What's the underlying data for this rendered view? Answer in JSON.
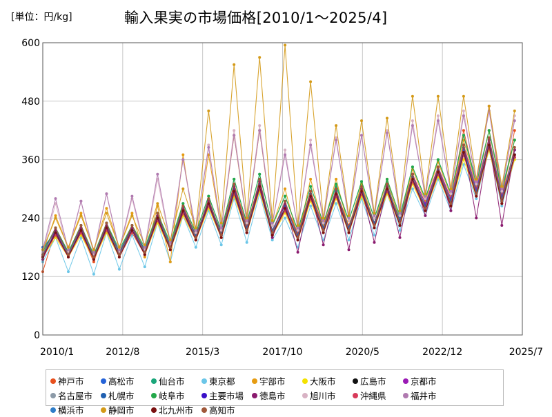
{
  "header": {
    "unit": "[単位：円/kg]",
    "title": "輸入果実の市場価格[2010/1～2025/4]"
  },
  "chart_data": {
    "type": "line",
    "title": "輸入果実の市場価格[2010/1～2025/4]",
    "unit": "[単位：円/kg]",
    "x_range": [
      "2010/1",
      "2025/7"
    ],
    "x_ticks": [
      "2010/1",
      "2012/8",
      "2015/3",
      "2017/10",
      "2020/5",
      "2022/12",
      "2025/7"
    ],
    "ylim": [
      0,
      600
    ],
    "y_ticks": [
      "0",
      "120",
      "240",
      "360",
      "480",
      "600"
    ],
    "grid": true,
    "legend_position": "bottom",
    "data_start": "2010/1",
    "data_end": "2025/4",
    "series": [
      {
        "name": "神戸市",
        "color": "#e8501e",
        "values": [
          130,
          215,
          165,
          210,
          150,
          225,
          170,
          220,
          175,
          245,
          180,
          265,
          205,
          275,
          210,
          310,
          225,
          315,
          215,
          270,
          210,
          295,
          225,
          295,
          225,
          295,
          230,
          300,
          235,
          330,
          270,
          340,
          280,
          420,
          310,
          470,
          280,
          420
        ]
      },
      {
        "name": "高松市",
        "color": "#2563d8",
        "values": [
          180,
          210,
          160,
          215,
          155,
          215,
          165,
          220,
          170,
          240,
          180,
          255,
          200,
          270,
          205,
          290,
          215,
          300,
          210,
          260,
          200,
          285,
          215,
          285,
          215,
          295,
          225,
          300,
          230,
          320,
          265,
          340,
          270,
          380,
          295,
          400,
          280,
          380
        ]
      },
      {
        "name": "仙台市",
        "color": "#1aa67a",
        "values": [
          165,
          220,
          170,
          225,
          160,
          230,
          170,
          225,
          175,
          250,
          185,
          270,
          210,
          285,
          215,
          320,
          230,
          330,
          225,
          285,
          215,
          305,
          230,
          305,
          235,
          315,
          240,
          315,
          240,
          345,
          280,
          360,
          290,
          410,
          315,
          420,
          300,
          400
        ]
      },
      {
        "name": "東京都",
        "color": "#6bc6e8",
        "values": [
          150,
          200,
          130,
          200,
          125,
          210,
          135,
          205,
          140,
          230,
          150,
          245,
          180,
          255,
          185,
          280,
          190,
          290,
          195,
          240,
          180,
          265,
          195,
          270,
          195,
          280,
          205,
          290,
          215,
          300,
          245,
          320,
          255,
          350,
          280,
          380,
          265,
          360
        ]
      },
      {
        "name": "宇部市",
        "color": "#e69c12",
        "values": [
          170,
          245,
          180,
          250,
          175,
          260,
          180,
          250,
          160,
          265,
          150,
          370,
          195,
          370,
          215,
          410,
          230,
          420,
          225,
          300,
          200,
          320,
          225,
          320,
          220,
          310,
          230,
          320,
          235,
          340,
          275,
          355,
          285,
          400,
          305,
          420,
          290,
          400
        ]
      },
      {
        "name": "大阪市",
        "color": "#f4e200",
        "values": [
          160,
          200,
          160,
          205,
          155,
          210,
          160,
          210,
          165,
          230,
          175,
          245,
          195,
          260,
          200,
          285,
          210,
          295,
          205,
          250,
          195,
          275,
          210,
          280,
          210,
          285,
          220,
          290,
          225,
          310,
          255,
          325,
          265,
          360,
          285,
          380,
          270,
          360
        ]
      },
      {
        "name": "広島市",
        "color": "#111111",
        "values": [
          165,
          205,
          165,
          210,
          160,
          215,
          165,
          215,
          170,
          235,
          180,
          250,
          200,
          265,
          205,
          290,
          215,
          300,
          210,
          255,
          200,
          280,
          215,
          285,
          215,
          290,
          225,
          295,
          230,
          315,
          260,
          330,
          270,
          370,
          290,
          385,
          275,
          365
        ]
      },
      {
        "name": "京都市",
        "color": "#9a1ab5",
        "values": [
          160,
          215,
          165,
          220,
          160,
          225,
          170,
          220,
          170,
          245,
          180,
          260,
          205,
          275,
          210,
          305,
          220,
          315,
          215,
          270,
          205,
          290,
          220,
          295,
          220,
          300,
          230,
          305,
          235,
          330,
          270,
          345,
          280,
          390,
          300,
          405,
          285,
          380
        ]
      },
      {
        "name": "名古屋市",
        "color": "#8c9aa8",
        "values": [
          165,
          210,
          165,
          215,
          160,
          220,
          165,
          215,
          170,
          240,
          180,
          255,
          200,
          270,
          205,
          295,
          215,
          305,
          210,
          260,
          200,
          285,
          215,
          290,
          215,
          295,
          225,
          300,
          230,
          320,
          260,
          335,
          270,
          375,
          290,
          390,
          275,
          370
        ]
      },
      {
        "name": "札幌市",
        "color": "#1f5fb0",
        "values": [
          175,
          215,
          170,
          220,
          165,
          225,
          170,
          220,
          175,
          245,
          185,
          260,
          205,
          275,
          210,
          300,
          220,
          310,
          215,
          265,
          205,
          290,
          220,
          295,
          220,
          300,
          230,
          305,
          235,
          325,
          265,
          340,
          275,
          385,
          295,
          400,
          280,
          380
        ]
      },
      {
        "name": "岐阜市",
        "color": "#23a84a",
        "values": [
          170,
          220,
          170,
          225,
          165,
          230,
          175,
          225,
          180,
          250,
          190,
          270,
          210,
          285,
          215,
          320,
          230,
          330,
          225,
          285,
          215,
          305,
          230,
          310,
          235,
          315,
          240,
          320,
          245,
          345,
          280,
          360,
          290,
          410,
          310,
          420,
          295,
          400
        ]
      },
      {
        "name": "主要市場",
        "color": "#3a10c8",
        "values": [
          165,
          210,
          165,
          215,
          160,
          220,
          165,
          215,
          170,
          240,
          180,
          255,
          200,
          270,
          205,
          295,
          215,
          305,
          210,
          260,
          200,
          285,
          215,
          290,
          215,
          295,
          225,
          300,
          230,
          320,
          260,
          335,
          270,
          375,
          290,
          390,
          275,
          370
        ]
      },
      {
        "name": "徳島市",
        "color": "#8a1a6e",
        "values": [
          155,
          215,
          160,
          220,
          155,
          225,
          165,
          220,
          165,
          245,
          175,
          260,
          200,
          275,
          205,
          305,
          210,
          315,
          200,
          270,
          170,
          295,
          185,
          300,
          175,
          300,
          190,
          305,
          200,
          330,
          245,
          345,
          255,
          390,
          240,
          400,
          225,
          380
        ]
      },
      {
        "name": "旭川市",
        "color": "#d8b2c4",
        "values": [
          170,
          270,
          170,
          275,
          165,
          290,
          170,
          280,
          175,
          320,
          185,
          360,
          210,
          390,
          215,
          420,
          230,
          430,
          225,
          380,
          215,
          400,
          230,
          405,
          235,
          410,
          240,
          420,
          245,
          440,
          280,
          450,
          290,
          460,
          310,
          470,
          295,
          450
        ]
      },
      {
        "name": "沖縄県",
        "color": "#d83a5a",
        "values": [
          160,
          205,
          160,
          210,
          155,
          215,
          160,
          210,
          165,
          235,
          175,
          250,
          195,
          265,
          200,
          290,
          210,
          300,
          205,
          255,
          195,
          280,
          210,
          285,
          210,
          290,
          220,
          295,
          225,
          315,
          255,
          330,
          265,
          370,
          285,
          385,
          270,
          365
        ]
      },
      {
        "name": "福井市",
        "color": "#b07ab0",
        "values": [
          175,
          280,
          175,
          275,
          170,
          290,
          175,
          285,
          180,
          330,
          190,
          360,
          215,
          385,
          220,
          410,
          235,
          420,
          230,
          370,
          220,
          390,
          235,
          400,
          240,
          410,
          245,
          415,
          250,
          430,
          285,
          440,
          295,
          450,
          315,
          460,
          300,
          440
        ]
      },
      {
        "name": "横浜市",
        "color": "#2f7dc8",
        "values": [
          165,
          210,
          165,
          215,
          160,
          220,
          165,
          215,
          170,
          240,
          180,
          255,
          200,
          270,
          205,
          295,
          215,
          305,
          210,
          260,
          200,
          285,
          215,
          290,
          215,
          295,
          225,
          300,
          230,
          320,
          260,
          335,
          270,
          375,
          290,
          390,
          275,
          370
        ]
      },
      {
        "name": "静岡市",
        "color": "#d49a18",
        "values": [
          175,
          240,
          180,
          245,
          175,
          250,
          180,
          245,
          185,
          270,
          195,
          300,
          220,
          460,
          230,
          555,
          240,
          570,
          235,
          595,
          225,
          520,
          240,
          430,
          245,
          440,
          250,
          445,
          255,
          490,
          290,
          490,
          300,
          490,
          320,
          470,
          305,
          460
        ]
      },
      {
        "name": "北九州市",
        "color": "#7a1010",
        "values": [
          160,
          210,
          160,
          215,
          155,
          220,
          160,
          215,
          165,
          240,
          175,
          255,
          195,
          270,
          200,
          295,
          210,
          305,
          205,
          260,
          195,
          285,
          210,
          290,
          210,
          295,
          220,
          300,
          225,
          320,
          255,
          335,
          265,
          375,
          285,
          390,
          270,
          370
        ]
      },
      {
        "name": "高知市",
        "color": "#a0583a",
        "values": [
          165,
          220,
          165,
          225,
          160,
          230,
          165,
          225,
          170,
          250,
          180,
          265,
          200,
          280,
          205,
          310,
          215,
          320,
          210,
          275,
          200,
          295,
          215,
          300,
          215,
          305,
          225,
          310,
          230,
          330,
          260,
          345,
          270,
          390,
          290,
          405,
          275,
          385
        ]
      }
    ]
  }
}
